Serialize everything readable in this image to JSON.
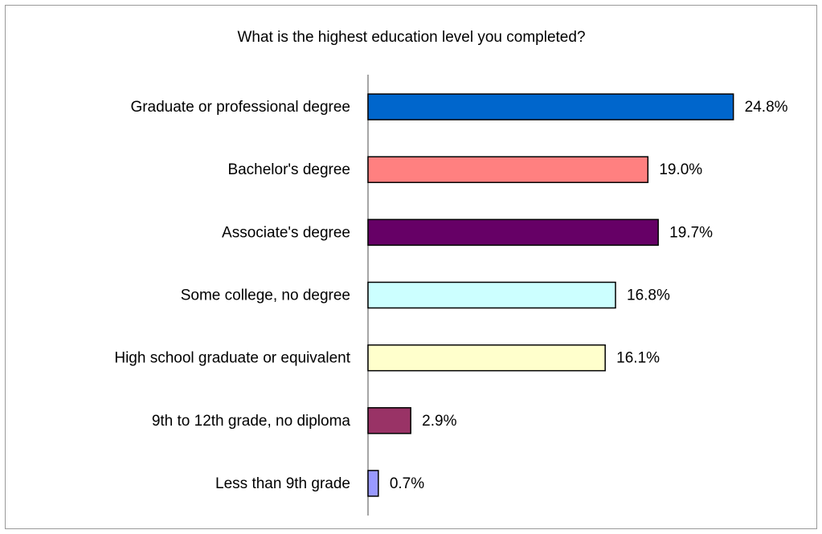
{
  "chart_data": {
    "type": "hbar",
    "title": "What is the highest education level you completed?",
    "categories": [
      "Graduate or professional degree",
      "Bachelor's degree",
      "Associate's degree",
      "Some college, no degree",
      "High school graduate or equivalent",
      "9th to 12th grade, no diploma",
      "Less than 9th grade"
    ],
    "values": [
      24.8,
      19.0,
      19.7,
      16.8,
      16.1,
      2.9,
      0.7
    ],
    "value_labels": [
      "24.8%",
      "19.0%",
      "19.7%",
      "16.8%",
      "16.1%",
      "2.9%",
      "0.7%"
    ],
    "colors": [
      "#0066cc",
      "#ff8080",
      "#660066",
      "#ccffff",
      "#ffffcc",
      "#993366",
      "#9999ff"
    ],
    "xlim": [
      0,
      30
    ]
  }
}
